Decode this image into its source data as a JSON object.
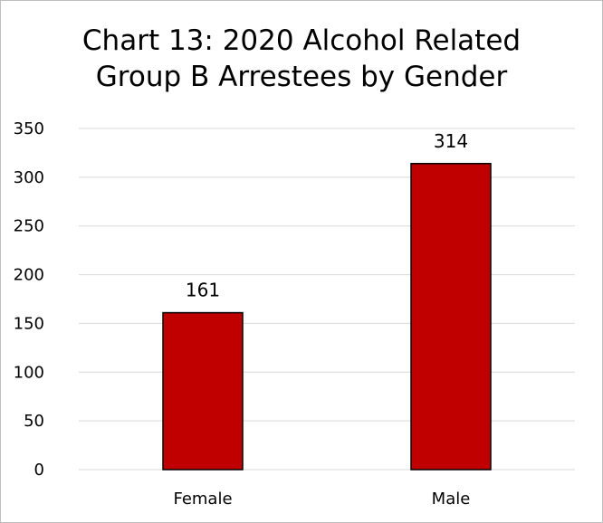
{
  "chart_data": {
    "type": "bar",
    "title_lines": [
      "Chart 13:  2020 Alcohol Related",
      "Group B Arrestees by Gender"
    ],
    "categories": [
      "Female",
      "Male"
    ],
    "values": [
      161,
      314
    ],
    "data_labels": [
      "161",
      "314"
    ],
    "xlabel": "",
    "ylabel": "",
    "ylim": [
      0,
      350
    ],
    "yticks": [
      0,
      50,
      100,
      150,
      200,
      250,
      300,
      350
    ],
    "grid": true,
    "legend": "none",
    "bar_color": "#c00000",
    "bar_edge_color": "#000000",
    "grid_color": "#d9d9d9"
  }
}
